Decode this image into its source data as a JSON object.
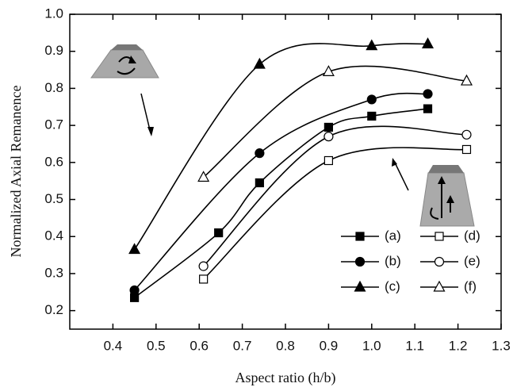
{
  "chart_data": {
    "type": "scatter-curve",
    "xlabel": "Aspect ratio (h/b)",
    "ylabel": "Normalized Axial Remanence",
    "xlim": [
      0.3,
      1.3
    ],
    "ylim": [
      0.15,
      1.0
    ],
    "xticks": [
      0.4,
      0.5,
      0.6,
      0.7,
      0.8,
      0.9,
      {
        "value": 1.0,
        "label": "1.0"
      },
      1.1,
      1.2,
      1.3
    ],
    "yticks": [
      0.2,
      0.3,
      0.4,
      0.5,
      0.6,
      0.7,
      0.8,
      0.9,
      {
        "value": 1.0,
        "label": "1.0"
      }
    ],
    "series": [
      {
        "name": "(a)",
        "color": "#000000",
        "marker": "square",
        "filled": true,
        "x": [
          0.45,
          0.645,
          0.74,
          0.9,
          1.0,
          1.13
        ],
        "values": [
          0.235,
          0.41,
          0.545,
          0.695,
          0.725,
          0.745
        ]
      },
      {
        "name": "(b)",
        "color": "#000000",
        "marker": "circle",
        "filled": true,
        "x": [
          0.45,
          0.74,
          1.0,
          1.13
        ],
        "values": [
          0.255,
          0.625,
          0.77,
          0.785
        ]
      },
      {
        "name": "(c)",
        "color": "#000000",
        "marker": "triangle",
        "filled": true,
        "x": [
          0.45,
          0.74,
          1.0,
          1.13
        ],
        "values": [
          0.365,
          0.865,
          0.915,
          0.92
        ]
      },
      {
        "name": "(d)",
        "color": "#000000",
        "marker": "square",
        "filled": false,
        "x": [
          0.61,
          0.9,
          1.22
        ],
        "values": [
          0.285,
          0.605,
          0.635
        ]
      },
      {
        "name": "(e)",
        "color": "#000000",
        "marker": "circle",
        "filled": false,
        "x": [
          0.61,
          0.9,
          1.22
        ],
        "values": [
          0.32,
          0.67,
          0.675
        ]
      },
      {
        "name": "(f)",
        "color": "#000000",
        "marker": "triangle",
        "filled": false,
        "x": [
          0.61,
          0.9,
          1.22
        ],
        "values": [
          0.56,
          0.845,
          0.82
        ]
      }
    ]
  }
}
